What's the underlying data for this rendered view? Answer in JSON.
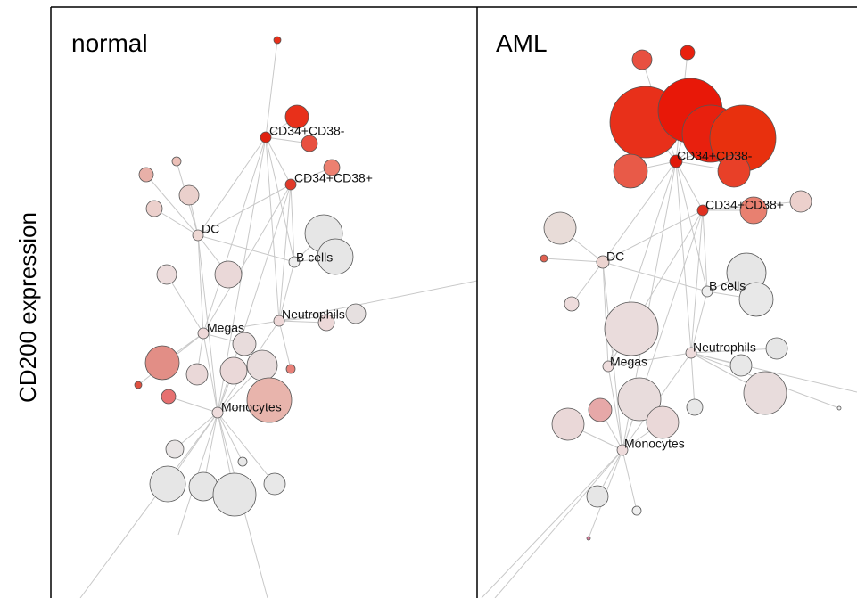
{
  "y_label": "CD200 expression",
  "panels": [
    {
      "title": "normal",
      "labels": [
        "CD34+CD38-",
        "CD34+CD38+",
        "DC",
        "B cells",
        "Neutrophils",
        "Megas",
        "Monocytes"
      ]
    },
    {
      "title": "AML",
      "labels": [
        "CD34+CD38-",
        "CD34+CD38+",
        "DC",
        "B cells",
        "Neutrophils",
        "Megas",
        "Monocytes"
      ]
    }
  ]
}
